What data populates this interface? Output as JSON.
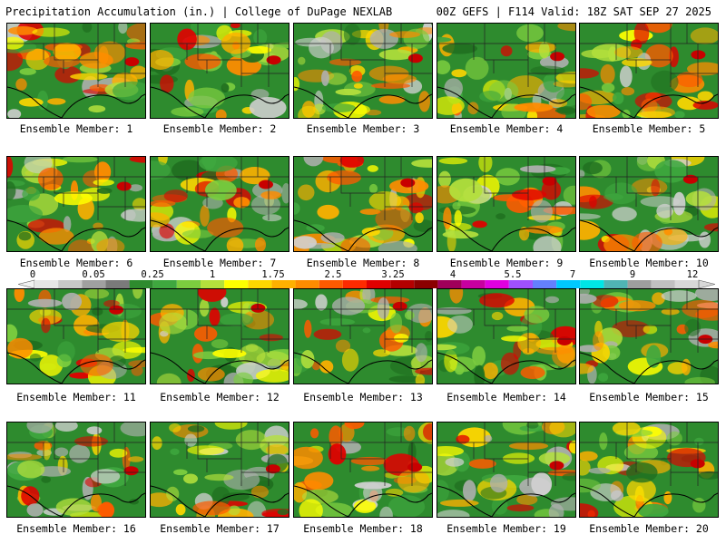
{
  "header": {
    "left": "Precipitation Accumulation (in.) | College of DuPage NEXLAB",
    "right": "00Z GEFS | F114 Valid: 18Z SAT SEP 27 2025"
  },
  "members": [
    "Ensemble Member: 1",
    "Ensemble Member: 2",
    "Ensemble Member: 3",
    "Ensemble Member: 4",
    "Ensemble Member: 5",
    "Ensemble Member: 6",
    "Ensemble Member: 7",
    "Ensemble Member: 8",
    "Ensemble Member: 9",
    "Ensemble Member: 10",
    "Ensemble Member: 11",
    "Ensemble Member: 12",
    "Ensemble Member: 13",
    "Ensemble Member: 14",
    "Ensemble Member: 15",
    "Ensemble Member: 16",
    "Ensemble Member: 17",
    "Ensemble Member: 18",
    "Ensemble Member: 19",
    "Ensemble Member: 20"
  ],
  "colorbar": {
    "labels": [
      "0",
      "0.05",
      "0.25",
      "1",
      "1.75",
      "2.5",
      "3.25",
      "4",
      "5.5",
      "7",
      "9",
      "12"
    ],
    "colors": [
      "#e6e6e6",
      "#c8c8c8",
      "#a0a0a0",
      "#7a7a7a",
      "#2e8b2e",
      "#3fa83f",
      "#7ccd3f",
      "#b4e03c",
      "#ffff00",
      "#ffd700",
      "#ffb000",
      "#ff8c00",
      "#ff5a00",
      "#ff2a00",
      "#e00000",
      "#b40000",
      "#8b0000",
      "#a0005a",
      "#c800a0",
      "#e000e0",
      "#a050ff",
      "#6480ff",
      "#00c8ff",
      "#00e6e6",
      "#50b4b4",
      "#9e9e9e",
      "#c0c0c0",
      "#d8d8d8"
    ]
  }
}
